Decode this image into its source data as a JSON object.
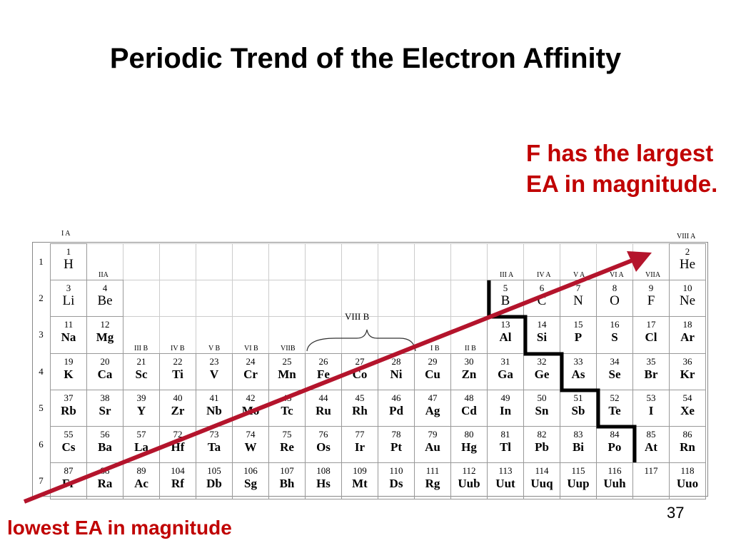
{
  "slide": {
    "title": "Periodic Trend of the Electron Affinity",
    "annotation_high": "F has the largest EA in magnitude.",
    "annotation_low": "lowest EA in magnitude",
    "slide_number": "37",
    "accent_color": "#c00000"
  },
  "periodic_table": {
    "group_labels": [
      {
        "id": "ia",
        "text": "I A"
      },
      {
        "id": "iia",
        "text": "IIA"
      },
      {
        "id": "iiib",
        "text": "III B"
      },
      {
        "id": "ivb",
        "text": "IV B"
      },
      {
        "id": "vb",
        "text": "V B"
      },
      {
        "id": "vib",
        "text": "VI B"
      },
      {
        "id": "viib",
        "text": "VIIB"
      },
      {
        "id": "ib",
        "text": "I B"
      },
      {
        "id": "iib",
        "text": "II B"
      },
      {
        "id": "iiia",
        "text": "III A"
      },
      {
        "id": "iva",
        "text": "IV A"
      },
      {
        "id": "va",
        "text": "V A"
      },
      {
        "id": "via",
        "text": "VI A"
      },
      {
        "id": "viia",
        "text": "VIIA"
      },
      {
        "id": "viiia",
        "text": "VIII A"
      }
    ],
    "viiib_label": "VIII B",
    "period_labels": [
      "1",
      "2",
      "3",
      "4",
      "5",
      "6",
      "7"
    ],
    "periods": [
      [
        {
          "n": "1",
          "s": "H",
          "c": 1
        },
        {
          "n": "2",
          "s": "He",
          "c": 18
        }
      ],
      [
        {
          "n": "3",
          "s": "Li",
          "c": 1
        },
        {
          "n": "4",
          "s": "Be",
          "c": 2
        },
        {
          "n": "5",
          "s": "B",
          "c": 13
        },
        {
          "n": "6",
          "s": "C",
          "c": 14
        },
        {
          "n": "7",
          "s": "N",
          "c": 15
        },
        {
          "n": "8",
          "s": "O",
          "c": 16
        },
        {
          "n": "9",
          "s": "F",
          "c": 17
        },
        {
          "n": "10",
          "s": "Ne",
          "c": 18
        }
      ],
      [
        {
          "n": "11",
          "s": "Na",
          "c": 1
        },
        {
          "n": "12",
          "s": "Mg",
          "c": 2
        },
        {
          "n": "13",
          "s": "Al",
          "c": 13
        },
        {
          "n": "14",
          "s": "Si",
          "c": 14
        },
        {
          "n": "15",
          "s": "P",
          "c": 15
        },
        {
          "n": "16",
          "s": "S",
          "c": 16
        },
        {
          "n": "17",
          "s": "Cl",
          "c": 17
        },
        {
          "n": "18",
          "s": "Ar",
          "c": 18
        }
      ],
      [
        {
          "n": "19",
          "s": "K",
          "c": 1
        },
        {
          "n": "20",
          "s": "Ca",
          "c": 2
        },
        {
          "n": "21",
          "s": "Sc",
          "c": 3
        },
        {
          "n": "22",
          "s": "Ti",
          "c": 4
        },
        {
          "n": "23",
          "s": "V",
          "c": 5
        },
        {
          "n": "24",
          "s": "Cr",
          "c": 6
        },
        {
          "n": "25",
          "s": "Mn",
          "c": 7
        },
        {
          "n": "26",
          "s": "Fe",
          "c": 8
        },
        {
          "n": "27",
          "s": "Co",
          "c": 9
        },
        {
          "n": "28",
          "s": "Ni",
          "c": 10
        },
        {
          "n": "29",
          "s": "Cu",
          "c": 11
        },
        {
          "n": "30",
          "s": "Zn",
          "c": 12
        },
        {
          "n": "31",
          "s": "Ga",
          "c": 13
        },
        {
          "n": "32",
          "s": "Ge",
          "c": 14
        },
        {
          "n": "33",
          "s": "As",
          "c": 15
        },
        {
          "n": "34",
          "s": "Se",
          "c": 16
        },
        {
          "n": "35",
          "s": "Br",
          "c": 17
        },
        {
          "n": "36",
          "s": "Kr",
          "c": 18
        }
      ],
      [
        {
          "n": "37",
          "s": "Rb",
          "c": 1
        },
        {
          "n": "38",
          "s": "Sr",
          "c": 2
        },
        {
          "n": "39",
          "s": "Y",
          "c": 3
        },
        {
          "n": "40",
          "s": "Zr",
          "c": 4
        },
        {
          "n": "41",
          "s": "Nb",
          "c": 5
        },
        {
          "n": "42",
          "s": "Mo",
          "c": 6
        },
        {
          "n": "43",
          "s": "Tc",
          "c": 7
        },
        {
          "n": "44",
          "s": "Ru",
          "c": 8
        },
        {
          "n": "45",
          "s": "Rh",
          "c": 9
        },
        {
          "n": "46",
          "s": "Pd",
          "c": 10
        },
        {
          "n": "47",
          "s": "Ag",
          "c": 11
        },
        {
          "n": "48",
          "s": "Cd",
          "c": 12
        },
        {
          "n": "49",
          "s": "In",
          "c": 13
        },
        {
          "n": "50",
          "s": "Sn",
          "c": 14
        },
        {
          "n": "51",
          "s": "Sb",
          "c": 15
        },
        {
          "n": "52",
          "s": "Te",
          "c": 16
        },
        {
          "n": "53",
          "s": "I",
          "c": 17
        },
        {
          "n": "54",
          "s": "Xe",
          "c": 18
        }
      ],
      [
        {
          "n": "55",
          "s": "Cs",
          "c": 1
        },
        {
          "n": "56",
          "s": "Ba",
          "c": 2
        },
        {
          "n": "57",
          "s": "La",
          "c": 3
        },
        {
          "n": "72",
          "s": "Hf",
          "c": 4
        },
        {
          "n": "73",
          "s": "Ta",
          "c": 5
        },
        {
          "n": "74",
          "s": "W",
          "c": 6
        },
        {
          "n": "75",
          "s": "Re",
          "c": 7
        },
        {
          "n": "76",
          "s": "Os",
          "c": 8
        },
        {
          "n": "77",
          "s": "Ir",
          "c": 9
        },
        {
          "n": "78",
          "s": "Pt",
          "c": 10
        },
        {
          "n": "79",
          "s": "Au",
          "c": 11
        },
        {
          "n": "80",
          "s": "Hg",
          "c": 12
        },
        {
          "n": "81",
          "s": "Tl",
          "c": 13
        },
        {
          "n": "82",
          "s": "Pb",
          "c": 14
        },
        {
          "n": "83",
          "s": "Bi",
          "c": 15
        },
        {
          "n": "84",
          "s": "Po",
          "c": 16
        },
        {
          "n": "85",
          "s": "At",
          "c": 17
        },
        {
          "n": "86",
          "s": "Rn",
          "c": 18
        }
      ],
      [
        {
          "n": "87",
          "s": "Fr",
          "c": 1
        },
        {
          "n": "88",
          "s": "Ra",
          "c": 2
        },
        {
          "n": "89",
          "s": "Ac",
          "c": 3
        },
        {
          "n": "104",
          "s": "Rf",
          "c": 4
        },
        {
          "n": "105",
          "s": "Db",
          "c": 5
        },
        {
          "n": "106",
          "s": "Sg",
          "c": 6
        },
        {
          "n": "107",
          "s": "Bh",
          "c": 7
        },
        {
          "n": "108",
          "s": "Hs",
          "c": 8
        },
        {
          "n": "109",
          "s": "Mt",
          "c": 9
        },
        {
          "n": "110",
          "s": "Ds",
          "c": 10
        },
        {
          "n": "111",
          "s": "Rg",
          "c": 11
        },
        {
          "n": "112",
          "s": "Uub",
          "c": 12
        },
        {
          "n": "113",
          "s": "Uut",
          "c": 13
        },
        {
          "n": "114",
          "s": "Uuq",
          "c": 14
        },
        {
          "n": "115",
          "s": "Uup",
          "c": 15
        },
        {
          "n": "116",
          "s": "Uuh",
          "c": 16
        },
        {
          "n": "117",
          "s": "",
          "c": 17
        },
        {
          "n": "118",
          "s": "Uuo",
          "c": 18
        }
      ]
    ]
  }
}
